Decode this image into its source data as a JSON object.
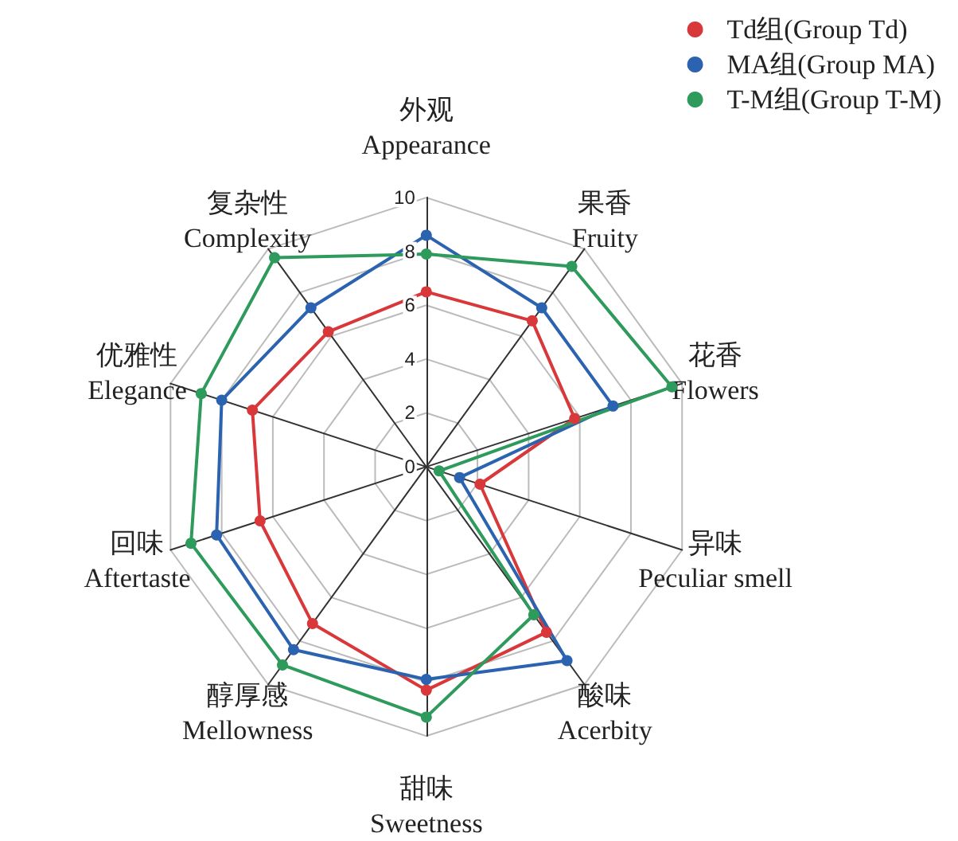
{
  "chart_data": {
    "type": "radar",
    "categories": [
      "外观\nAppearance",
      "果香\nFruity",
      "花香\nFlowers",
      "异味\nPeculiar smell",
      "酸味\nAcerbity",
      "甜味\nSweetness",
      "醇厚感\nMellowness",
      "回味\nAftertaste",
      "优雅性\nElegance",
      "复杂性\nComplexity"
    ],
    "series": [
      {
        "name": "Td组(Group Td)",
        "color": "#d9383a",
        "values": [
          6.5,
          6.7,
          5.8,
          2.1,
          7.6,
          8.3,
          7.2,
          6.5,
          6.8,
          6.2
        ]
      },
      {
        "name": "MA组(Group MA)",
        "color": "#2b63b0",
        "values": [
          8.6,
          7.3,
          7.3,
          1.3,
          8.9,
          7.9,
          8.4,
          8.2,
          8.0,
          7.3
        ]
      },
      {
        "name": "T-M组(Group T-M)",
        "color": "#2e9a5c",
        "values": [
          7.9,
          9.2,
          9.6,
          0.5,
          6.8,
          9.3,
          9.1,
          9.2,
          8.8,
          9.6
        ]
      }
    ],
    "ylim": [
      0,
      10
    ],
    "yticks": [
      0,
      2,
      4,
      6,
      8,
      10
    ],
    "legend": "top right",
    "marker": "circle",
    "line_style": "solid"
  }
}
